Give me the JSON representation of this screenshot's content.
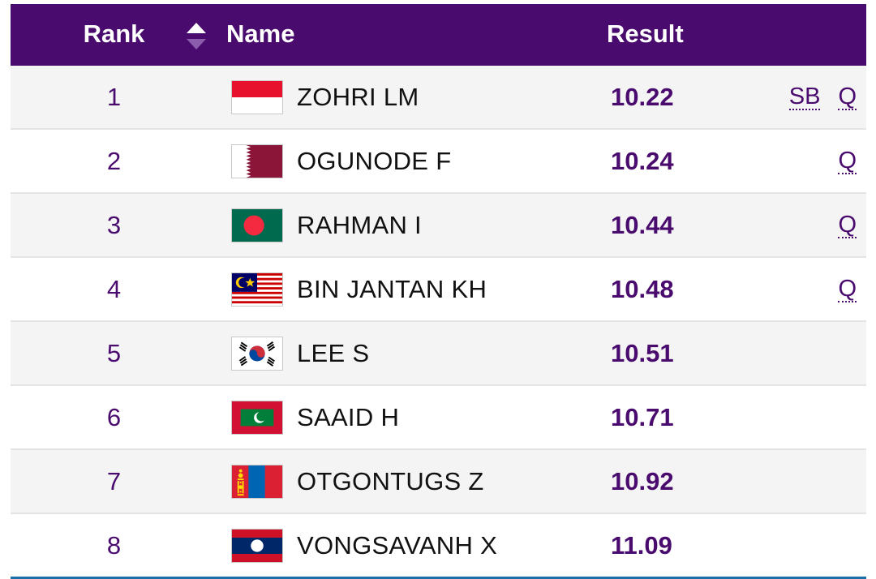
{
  "header": {
    "rank_label": "Rank",
    "name_label": "Name",
    "result_label": "Result"
  },
  "rows": [
    {
      "rank": "1",
      "name": "ZOHRI LM",
      "result": "10.22",
      "flag_icon": "indonesia-flag-icon",
      "mark1": "SB",
      "mark2": "Q"
    },
    {
      "rank": "2",
      "name": "OGUNODE F",
      "result": "10.24",
      "flag_icon": "qatar-flag-icon",
      "mark1": "",
      "mark2": "Q"
    },
    {
      "rank": "3",
      "name": "RAHMAN I",
      "result": "10.44",
      "flag_icon": "bangladesh-flag-icon",
      "mark1": "",
      "mark2": "Q"
    },
    {
      "rank": "4",
      "name": "BIN JANTAN KH",
      "result": "10.48",
      "flag_icon": "malaysia-flag-icon",
      "mark1": "",
      "mark2": "Q"
    },
    {
      "rank": "5",
      "name": "LEE S",
      "result": "10.51",
      "flag_icon": "south-korea-flag-icon",
      "mark1": "",
      "mark2": ""
    },
    {
      "rank": "6",
      "name": "SAAID H",
      "result": "10.71",
      "flag_icon": "maldives-flag-icon",
      "mark1": "",
      "mark2": ""
    },
    {
      "rank": "7",
      "name": "OTGONTUGS Z",
      "result": "10.92",
      "flag_icon": "mongolia-flag-icon",
      "mark1": "",
      "mark2": ""
    },
    {
      "rank": "8",
      "name": "VONGSAVANH X",
      "result": "11.09",
      "flag_icon": "laos-flag-icon",
      "mark1": "",
      "mark2": ""
    }
  ],
  "colors": {
    "header_bg": "#4a0b6e",
    "accent": "#4a0b6e",
    "bottom_rule": "#1a6fa8"
  }
}
